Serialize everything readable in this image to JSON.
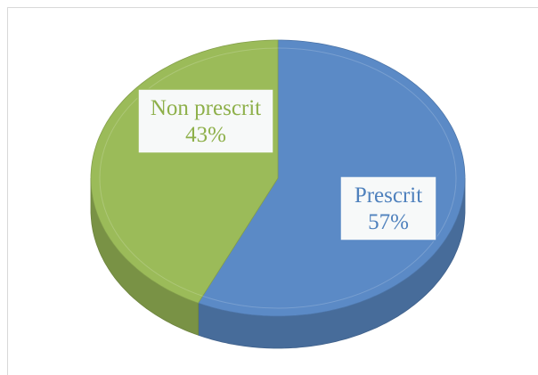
{
  "chart_data": {
    "type": "pie",
    "categories": [
      "Prescrit",
      "Non prescrit"
    ],
    "values": [
      57,
      43
    ],
    "value_labels": [
      "57%",
      "43%"
    ],
    "colors": [
      "#5b8ac6",
      "#9bbb59"
    ]
  }
}
